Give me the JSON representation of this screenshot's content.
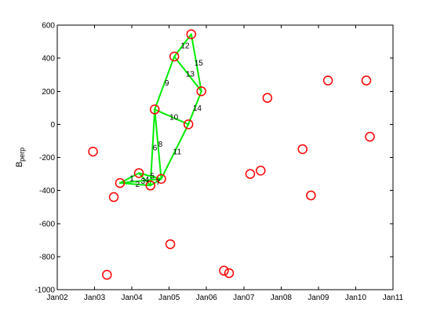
{
  "chart_data": {
    "type": "scatter",
    "title": "",
    "xlabel": "",
    "ylabel": "B",
    "ylabel_subscript": "perp",
    "x_ticks": [
      "Jan02",
      "Jan03",
      "Jan04",
      "Jan05",
      "Jan06",
      "Jan07",
      "Jan08",
      "Jan09",
      "Jan10",
      "Jan11"
    ],
    "xlim": [
      "2002-01-01",
      "2011-01-01"
    ],
    "ylim": [
      -1000,
      600
    ],
    "y_ticks": [
      600,
      400,
      200,
      0,
      -200,
      -400,
      -600,
      -800,
      -1000
    ],
    "grid": false,
    "colors": {
      "points": "#ff0000",
      "edges": "#00ee00",
      "axes": "#000000",
      "background": "#ffffff"
    },
    "points": [
      {
        "date": "2002-12-17",
        "y": -165
      },
      {
        "date": "2003-05-02",
        "y": -910
      },
      {
        "date": "2003-07-08",
        "y": -440
      },
      {
        "date": "2003-09-07",
        "y": -355
      },
      {
        "date": "2004-03-10",
        "y": -295
      },
      {
        "date": "2004-07-01",
        "y": -370
      },
      {
        "date": "2004-08-12",
        "y": 90
      },
      {
        "date": "2004-10-15",
        "y": -330
      },
      {
        "date": "2005-01-12",
        "y": -725
      },
      {
        "date": "2005-02-20",
        "y": 410
      },
      {
        "date": "2005-07-08",
        "y": 0
      },
      {
        "date": "2005-08-05",
        "y": 545
      },
      {
        "date": "2005-11-12",
        "y": 200
      },
      {
        "date": "2006-06-21",
        "y": -885
      },
      {
        "date": "2006-08-10",
        "y": -900
      },
      {
        "date": "2007-03-05",
        "y": -300
      },
      {
        "date": "2007-06-15",
        "y": -280
      },
      {
        "date": "2007-08-20",
        "y": 160
      },
      {
        "date": "2008-07-30",
        "y": -150
      },
      {
        "date": "2008-10-20",
        "y": -430
      },
      {
        "date": "2009-04-05",
        "y": 265
      },
      {
        "date": "2010-04-15",
        "y": 265
      },
      {
        "date": "2010-05-20",
        "y": -75
      }
    ],
    "edges": [
      {
        "label": "1",
        "from": 3,
        "to": 4
      },
      {
        "label": "2",
        "from": 3,
        "to": 5
      },
      {
        "label": "3",
        "from": 3,
        "to": 7
      },
      {
        "label": "4",
        "from": 4,
        "to": 5
      },
      {
        "label": "5",
        "from": 4,
        "to": 7
      },
      {
        "label": "6",
        "from": 5,
        "to": 6
      },
      {
        "label": "7",
        "from": 5,
        "to": 7
      },
      {
        "label": "8",
        "from": 6,
        "to": 7
      },
      {
        "label": "9",
        "from": 6,
        "to": 9
      },
      {
        "label": "10",
        "from": 6,
        "to": 10
      },
      {
        "label": "11",
        "from": 7,
        "to": 10
      },
      {
        "label": "12",
        "from": 9,
        "to": 11
      },
      {
        "label": "13",
        "from": 9,
        "to": 12
      },
      {
        "label": "14",
        "from": 10,
        "to": 12
      },
      {
        "label": "15",
        "from": 11,
        "to": 12
      }
    ]
  }
}
